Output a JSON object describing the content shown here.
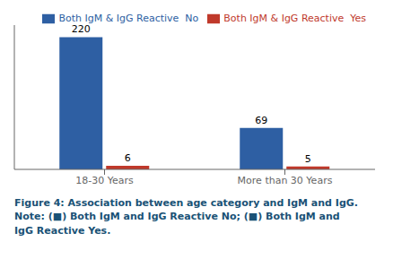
{
  "chart_data": {
    "type": "bar",
    "categories": [
      "18-30 Years",
      "More than 30 Years"
    ],
    "series": [
      {
        "name": "Both IgM & IgG Reactive  No",
        "color": "#2E5FA3",
        "values": [
          220,
          69
        ]
      },
      {
        "name": "Both IgM & IgG Reactive  Yes",
        "color": "#C0392B",
        "values": [
          6,
          5
        ]
      }
    ],
    "ylim": [
      0,
      240
    ],
    "data_labels": true,
    "tick_labels": "x",
    "grid": false,
    "legend": "top-right",
    "annotations": [
      "Figure 4: Association between age category and IgM and IgG.",
      "Note: (■) Both IgM and IgG Reactive No; (■) Both IgM and",
      "IgG Reactive Yes."
    ]
  }
}
